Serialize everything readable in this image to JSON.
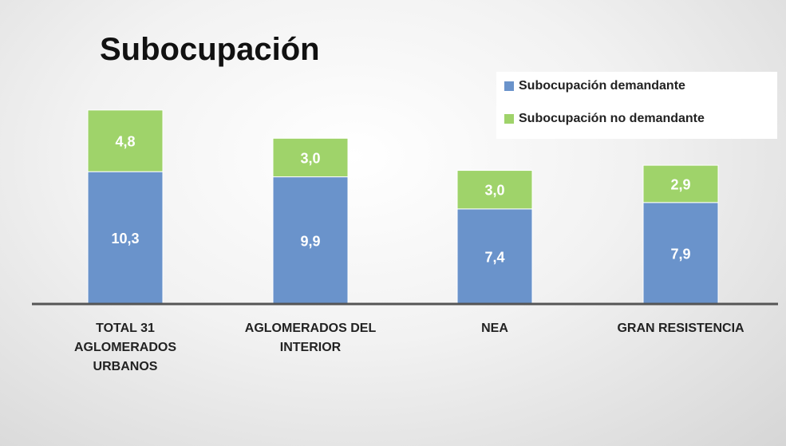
{
  "chart_data": {
    "type": "stacked_bar",
    "title": "Subocupación",
    "categories": [
      "TOTAL 31 AGLOMERADOS URBANOS",
      "AGLOMERADOS DEL INTERIOR",
      "NEA",
      "GRAN RESISTENCIA"
    ],
    "series": [
      {
        "name": "Subocupación demandante",
        "color": "#6a93cb",
        "values": [
          10.3,
          9.9,
          7.4,
          7.9
        ],
        "value_labels": [
          "10,3",
          "9,9",
          "7,4",
          "7,9"
        ]
      },
      {
        "name": "Subocupación no demandante",
        "color": "#9fd36a",
        "values": [
          4.8,
          3.0,
          3.0,
          2.9
        ],
        "value_labels": [
          "4,8",
          "3,0",
          "3,0",
          "2,9"
        ]
      }
    ]
  }
}
